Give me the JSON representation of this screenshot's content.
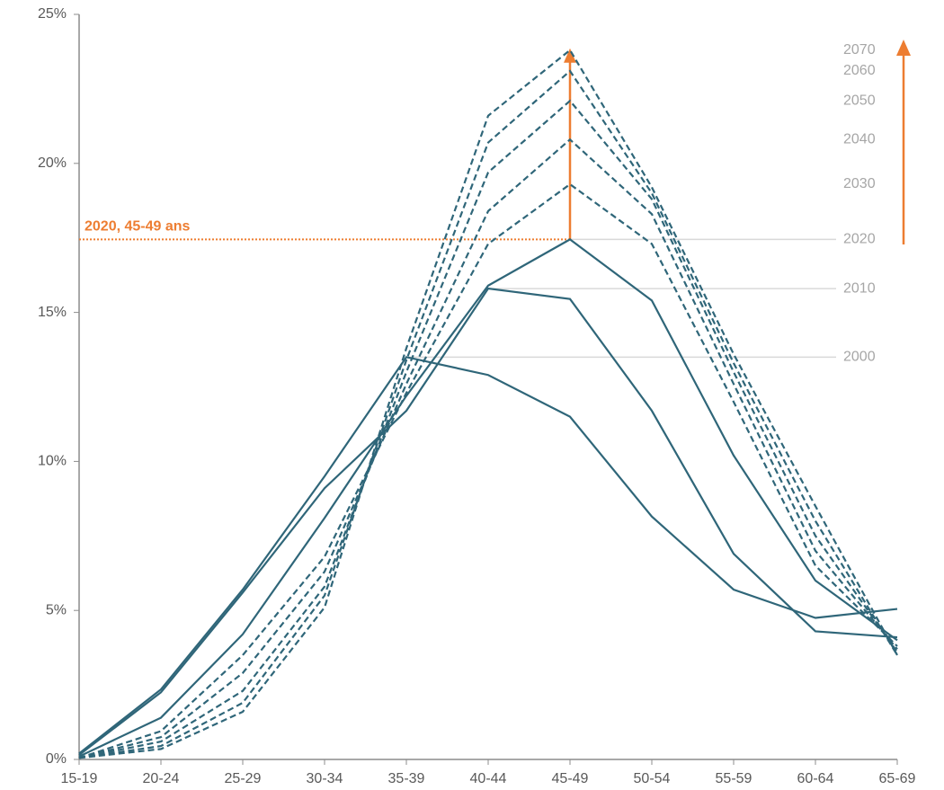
{
  "chart_data": {
    "type": "line",
    "categories": [
      "15-19",
      "20-24",
      "25-29",
      "30-34",
      "35-39",
      "40-44",
      "45-49",
      "50-54",
      "55-59",
      "60-64",
      "65-69"
    ],
    "ylim": [
      0,
      25
    ],
    "yticks": [
      {
        "value": 0,
        "label": "0%"
      },
      {
        "value": 5,
        "label": "5%"
      },
      {
        "value": 10,
        "label": "10%"
      },
      {
        "value": 15,
        "label": "15%"
      },
      {
        "value": 20,
        "label": "20%"
      },
      {
        "value": 25,
        "label": "25%"
      }
    ],
    "series": [
      {
        "name": "2000",
        "color": "#2f6679",
        "style": "solid",
        "values": [
          0.2,
          2.35,
          5.7,
          9.5,
          13.5,
          12.9,
          11.5,
          8.15,
          5.7,
          4.75,
          5.05
        ]
      },
      {
        "name": "2010",
        "color": "#2f6679",
        "style": "solid",
        "values": [
          0.15,
          2.25,
          5.6,
          9.1,
          11.7,
          15.8,
          15.45,
          11.7,
          6.9,
          4.3,
          4.1
        ]
      },
      {
        "name": "2020",
        "color": "#2f6679",
        "style": "solid",
        "values": [
          0.1,
          1.4,
          4.2,
          8.1,
          12.2,
          15.9,
          17.45,
          15.4,
          10.2,
          6.0,
          4.0
        ]
      },
      {
        "name": "2030",
        "color": "#2f6679",
        "style": "dashed",
        "values": [
          0.05,
          0.95,
          3.5,
          6.8,
          12.3,
          17.3,
          19.3,
          17.3,
          12.0,
          6.5,
          3.8
        ]
      },
      {
        "name": "2040",
        "color": "#2f6679",
        "style": "dashed",
        "values": [
          0.05,
          0.75,
          2.9,
          6.3,
          12.6,
          18.4,
          20.8,
          18.3,
          12.6,
          7.0,
          3.7
        ]
      },
      {
        "name": "2050",
        "color": "#2f6679",
        "style": "dashed",
        "values": [
          0.05,
          0.6,
          2.3,
          5.8,
          13.0,
          19.7,
          22.1,
          18.8,
          13.0,
          7.5,
          3.6
        ]
      },
      {
        "name": "2060",
        "color": "#2f6679",
        "style": "dashed",
        "values": [
          0.05,
          0.45,
          1.9,
          5.5,
          13.4,
          20.7,
          23.1,
          19.0,
          13.3,
          8.0,
          3.5
        ]
      },
      {
        "name": "2070",
        "color": "#2f6679",
        "style": "dashed",
        "values": [
          0.05,
          0.35,
          1.6,
          5.1,
          13.8,
          21.6,
          23.8,
          19.2,
          13.6,
          8.5,
          3.5
        ]
      }
    ],
    "annotation": {
      "text": "2020, 45-49 ans",
      "color": "#ed7d31"
    }
  }
}
